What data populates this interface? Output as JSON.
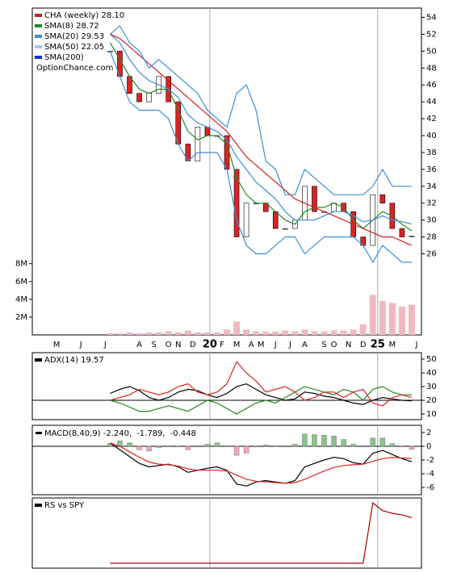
{
  "chart_data": [
    {
      "type": "candlestick",
      "x": [
        16,
        18,
        20,
        22,
        24,
        26,
        28,
        30,
        32,
        34,
        36,
        38,
        40,
        42,
        44,
        46,
        48,
        50,
        52,
        54,
        56,
        58,
        60,
        62,
        64,
        66,
        68,
        70,
        72,
        74,
        76,
        78
      ],
      "xlim": [
        0,
        80
      ],
      "ylim": [
        16.4,
        55.1
      ],
      "yticks": [
        26,
        28,
        30,
        32,
        34,
        36,
        38,
        40,
        42,
        44,
        46,
        48,
        50,
        52,
        54
      ],
      "close": [
        50,
        47,
        45,
        44,
        45,
        47,
        44,
        39,
        37,
        41,
        40,
        40,
        36,
        28,
        32,
        32,
        31,
        29,
        29,
        30,
        34,
        31,
        31,
        32,
        31,
        28,
        27,
        33,
        32,
        29,
        28,
        28.1
      ],
      "up_color": "#ffffff",
      "down_color": "#dd2222",
      "series": [
        {
          "color": "#228b22",
          "values": [
            51,
            49,
            47,
            45.5,
            45,
            45.5,
            45.5,
            43,
            40.5,
            39.5,
            40,
            40,
            39,
            35,
            33,
            32,
            32,
            31,
            30,
            29.5,
            31,
            31.5,
            31.5,
            32,
            31.5,
            30,
            29,
            30,
            31,
            30.5,
            29.5,
            28.72
          ]
        },
        {
          "color": "#3a8fd9",
          "values": [
            52,
            51,
            49,
            47.5,
            46.5,
            46,
            45.5,
            44.5,
            42.5,
            41.5,
            41,
            40.5,
            39.5,
            37.5,
            36,
            34.5,
            33.5,
            32.5,
            31,
            30,
            30,
            30,
            30.5,
            31,
            31,
            30.5,
            29.8,
            30,
            30.5,
            30,
            29.8,
            29.53
          ]
        },
        {
          "color": "#cc2222",
          "values": [
            52,
            51.5,
            50.5,
            49.5,
            48.5,
            47.5,
            46.5,
            45.5,
            44.5,
            43.5,
            42.5,
            41.5,
            40.5,
            39,
            37.5,
            36.5,
            35.5,
            34.5,
            33.5,
            32.5,
            32,
            31.5,
            31,
            30.5,
            30,
            29.5,
            29,
            28.5,
            28,
            28,
            27.5,
            27
          ]
        },
        {
          "color": "#3a8fd9",
          "values": [
            52,
            53,
            51,
            50,
            48,
            49,
            48,
            47,
            46,
            45,
            43,
            42,
            41,
            45,
            46,
            43,
            37,
            36,
            33,
            33,
            36,
            35,
            34,
            33,
            33,
            33,
            33,
            34,
            36,
            34,
            34,
            34
          ]
        },
        {
          "color": "#3a8fd9",
          "values": [
            50,
            47,
            44,
            43,
            43,
            43,
            42,
            39,
            37,
            38,
            38,
            38,
            36,
            30,
            27,
            26,
            26,
            27,
            28,
            28,
            26,
            27,
            28,
            28,
            28,
            28,
            27,
            25,
            27,
            26,
            25,
            25
          ]
        }
      ],
      "volume": {
        "color": "#f2b8c0",
        "ylim": [
          0,
          36700000
        ],
        "values": [
          200000,
          200000,
          300000,
          200000,
          300000,
          300000,
          400000,
          300000,
          500000,
          300000,
          300000,
          300000,
          600000,
          1500000,
          600000,
          400000,
          400000,
          400000,
          500000,
          400000,
          600000,
          400000,
          400000,
          500000,
          500000,
          600000,
          1200000,
          4500000,
          3800000,
          3600000,
          3200000,
          3400000
        ],
        "yticks": [
          {
            "value": 2000000,
            "label": "2M"
          },
          {
            "value": 4000000,
            "label": "4M"
          },
          {
            "value": 6000000,
            "label": "6M"
          },
          {
            "value": 8000000,
            "label": "8M"
          }
        ]
      },
      "xticks": [
        {
          "value": 5,
          "label": "M"
        },
        {
          "value": 10,
          "label": "J"
        },
        {
          "value": 15,
          "label": "J"
        },
        {
          "value": 22,
          "label": "A"
        },
        {
          "value": 25,
          "label": "S"
        },
        {
          "value": 28,
          "label": "O"
        },
        {
          "value": 30,
          "label": "N"
        },
        {
          "value": 33,
          "label": "D"
        },
        {
          "value": 39,
          "label": "F"
        },
        {
          "value": 42,
          "label": "M"
        },
        {
          "value": 45,
          "label": "A"
        },
        {
          "value": 47,
          "label": "M"
        },
        {
          "value": 50,
          "label": "J"
        },
        {
          "value": 53,
          "label": "J"
        },
        {
          "value": 56,
          "label": "A"
        },
        {
          "value": 60,
          "label": "S"
        },
        {
          "value": 62,
          "label": "O"
        },
        {
          "value": 65,
          "label": "N"
        },
        {
          "value": 68,
          "label": "D"
        },
        {
          "value": 74,
          "label": "M"
        },
        {
          "value": 79,
          "label": "J"
        }
      ],
      "year_ticks": [
        {
          "value": 36.5,
          "label": "20"
        },
        {
          "value": 71,
          "label": "25"
        }
      ],
      "legend": [
        {
          "label": "CHA (weekly) 28.10",
          "color": "#cc2222"
        },
        {
          "label": "SMA(8) 28.72",
          "color": "#228b22"
        },
        {
          "label": "SMA(20) 29.53",
          "color": "#3a8fd9"
        },
        {
          "label": "SMA(50) 22.05",
          "color": "#9ccbf0"
        },
        {
          "label": "SMA(200)",
          "color": "#1133cc"
        },
        {
          "label": "OptionChance.com"
        }
      ]
    },
    {
      "type": "line",
      "ylim": [
        5.9,
        54.7
      ],
      "yticks": [
        10,
        20,
        30,
        40,
        50
      ],
      "hline": 20,
      "series": [
        {
          "color": "#000000",
          "values": [
            25,
            28,
            30,
            27,
            22,
            20,
            22,
            26,
            28,
            27,
            24,
            22,
            25,
            30,
            32,
            28,
            24,
            22,
            20,
            21,
            26,
            25,
            23,
            22,
            20,
            18,
            17,
            20,
            22,
            21,
            20,
            19.57
          ]
        },
        {
          "color": "#228b22",
          "values": [
            20,
            18,
            15,
            12,
            12,
            14,
            16,
            14,
            12,
            16,
            20,
            18,
            14,
            10,
            14,
            18,
            20,
            18,
            22,
            26,
            30,
            28,
            26,
            24,
            28,
            26,
            20,
            28,
            30,
            26,
            24,
            24
          ]
        },
        {
          "color": "#dd2222",
          "values": [
            20,
            22,
            24,
            28,
            26,
            24,
            26,
            30,
            32,
            26,
            24,
            26,
            32,
            48,
            40,
            34,
            26,
            28,
            30,
            26,
            20,
            22,
            26,
            26,
            22,
            26,
            28,
            18,
            16,
            22,
            24,
            22
          ]
        }
      ],
      "legend": [
        {
          "label": "ADX(14) 19.57",
          "color": "#000000"
        }
      ]
    },
    {
      "type": "line",
      "ylim": [
        -7.06,
        3.06
      ],
      "yticks": [
        2,
        0,
        -2,
        -4,
        -6
      ],
      "hline": 0,
      "legend_inline": true,
      "histogram": {
        "up_color": "#88c488",
        "down_color": "#f0a8b8",
        "values": [
          0.4,
          0.8,
          0.5,
          -0.5,
          -0.7,
          -0.2,
          0.1,
          -0.1,
          -0.5,
          0,
          0.3,
          0.5,
          0.1,
          -1.3,
          -1,
          -0.1,
          0.2,
          0.1,
          0,
          0.3,
          1.8,
          1.7,
          1.6,
          1.5,
          1,
          0.3,
          0,
          1.2,
          1.2,
          0.4,
          -0.1,
          -0.448
        ]
      },
      "series": [
        {
          "color": "#000000",
          "values": [
            0.5,
            -0.5,
            -1.5,
            -2.5,
            -3,
            -2.8,
            -2.6,
            -3,
            -3.8,
            -3.5,
            -3.2,
            -3,
            -3.5,
            -5.5,
            -5.8,
            -5.2,
            -5,
            -5.2,
            -5.4,
            -5,
            -3,
            -2.5,
            -2,
            -1.6,
            -1.8,
            -2.4,
            -2.6,
            -1,
            -0.6,
            -1.2,
            -1.8,
            -2.24
          ]
        },
        {
          "color": "#dd2222",
          "values": [
            0.5,
            0,
            -0.8,
            -1.6,
            -2.3,
            -2.6,
            -2.7,
            -2.9,
            -3.3,
            -3.5,
            -3.5,
            -3.5,
            -3.6,
            -4.2,
            -4.8,
            -5.1,
            -5.2,
            -5.3,
            -5.4,
            -5.3,
            -4.8,
            -4.2,
            -3.6,
            -3.1,
            -2.8,
            -2.7,
            -2.6,
            -2.2,
            -1.8,
            -1.6,
            -1.7,
            -1.789
          ]
        }
      ],
      "legend": [
        {
          "label": "MACD(8,40,9) -2.240,",
          "color": "#000000",
          "text_color": "#000000"
        },
        {
          "label": "-1.789,",
          "text_color": "#dd0000"
        },
        {
          "label": "-0.448",
          "text_color": "#3366cc"
        }
      ]
    },
    {
      "type": "line",
      "ylim": [
        0,
        100
      ],
      "series": [
        {
          "color": "#aa0000",
          "values": [
            7,
            7,
            7,
            7,
            7,
            7,
            7,
            7,
            7,
            7,
            7,
            7,
            7,
            7,
            7,
            7,
            7,
            7,
            7,
            7,
            7,
            7,
            7,
            7,
            7,
            7,
            7,
            93,
            82,
            78,
            76,
            72
          ]
        }
      ],
      "legend": [
        {
          "label": "RS vs SPY",
          "color": "#000000"
        }
      ]
    }
  ]
}
